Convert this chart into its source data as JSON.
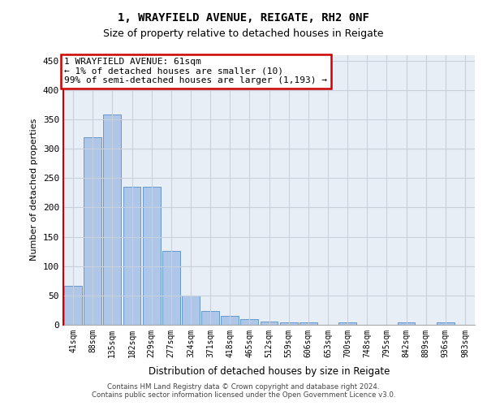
{
  "title1": "1, WRAYFIELD AVENUE, REIGATE, RH2 0NF",
  "title2": "Size of property relative to detached houses in Reigate",
  "xlabel": "Distribution of detached houses by size in Reigate",
  "ylabel": "Number of detached properties",
  "categories": [
    "41sqm",
    "88sqm",
    "135sqm",
    "182sqm",
    "229sqm",
    "277sqm",
    "324sqm",
    "371sqm",
    "418sqm",
    "465sqm",
    "512sqm",
    "559sqm",
    "606sqm",
    "653sqm",
    "700sqm",
    "748sqm",
    "795sqm",
    "842sqm",
    "889sqm",
    "936sqm",
    "983sqm"
  ],
  "values": [
    67,
    320,
    358,
    235,
    235,
    126,
    50,
    24,
    15,
    10,
    6,
    4,
    4,
    0,
    4,
    0,
    0,
    4,
    0,
    4,
    0
  ],
  "bar_color": "#aec6e8",
  "bar_edge_color": "#6699cc",
  "annotation_line1": "1 WRAYFIELD AVENUE: 61sqm",
  "annotation_line2": "← 1% of detached houses are smaller (10)",
  "annotation_line3": "99% of semi-detached houses are larger (1,193) →",
  "annotation_box_facecolor": "#ffffff",
  "annotation_box_edgecolor": "#cc0000",
  "vline_color": "#cc0000",
  "yticks": [
    0,
    50,
    100,
    150,
    200,
    250,
    300,
    350,
    400,
    450
  ],
  "ylim": [
    0,
    460
  ],
  "grid_color": "#c8d0dc",
  "background_color": "#e8eef5",
  "footer_line1": "Contains HM Land Registry data © Crown copyright and database right 2024.",
  "footer_line2": "Contains public sector information licensed under the Open Government Licence v3.0."
}
